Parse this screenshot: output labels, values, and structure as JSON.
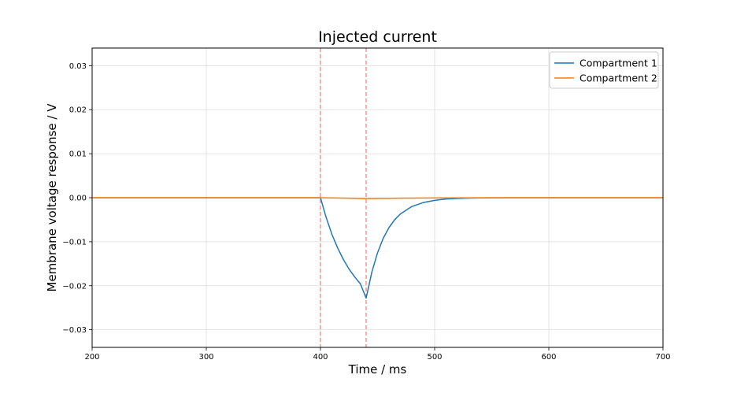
{
  "chart_data": {
    "type": "line",
    "title": "Injected current",
    "xlabel": "Time / ms",
    "ylabel": "Membrane voltage response / V",
    "xlim": [
      200,
      700
    ],
    "ylim": [
      -0.034,
      0.034
    ],
    "xticks": [
      200,
      300,
      400,
      500,
      600,
      700
    ],
    "xtick_labels": [
      "200",
      "300",
      "400",
      "500",
      "600",
      "700"
    ],
    "yticks": [
      -0.03,
      -0.02,
      -0.01,
      0.0,
      0.01,
      0.02,
      0.03
    ],
    "ytick_labels": [
      "−0.03",
      "−0.02",
      "−0.01",
      "0.00",
      "0.01",
      "0.02",
      "0.03"
    ],
    "grid": true,
    "legend_position": "top-right",
    "vertical_markers": {
      "x": [
        400,
        440
      ],
      "color": "#ff7f7f",
      "style": "dashed"
    },
    "series": [
      {
        "name": "Compartment 1",
        "color": "#1f77b4",
        "x": [
          200,
          300,
          400,
          405,
          410,
          415,
          420,
          425,
          430,
          435,
          440,
          445,
          450,
          455,
          460,
          465,
          470,
          480,
          490,
          500,
          510,
          520,
          530,
          540,
          550,
          560,
          600,
          650,
          700
        ],
        "y": [
          0,
          0,
          0,
          -0.0045,
          -0.0083,
          -0.0114,
          -0.014,
          -0.0162,
          -0.018,
          -0.0196,
          -0.0228,
          -0.0169,
          -0.0125,
          -0.0092,
          -0.0068,
          -0.005,
          -0.0037,
          -0.002,
          -0.0011,
          -0.0006,
          -0.0003,
          -0.00017,
          -9e-05,
          -5e-05,
          -2e-05,
          -1e-05,
          0,
          0,
          0
        ]
      },
      {
        "name": "Compartment 2",
        "color": "#ff7f0e",
        "x": [
          200,
          300,
          400,
          420,
          440,
          460,
          480,
          500,
          550,
          600,
          700
        ],
        "y": [
          0,
          0,
          0,
          -0.0001,
          -0.0002,
          -0.00015,
          -8e-05,
          -4e-05,
          0,
          0,
          0
        ]
      }
    ]
  }
}
